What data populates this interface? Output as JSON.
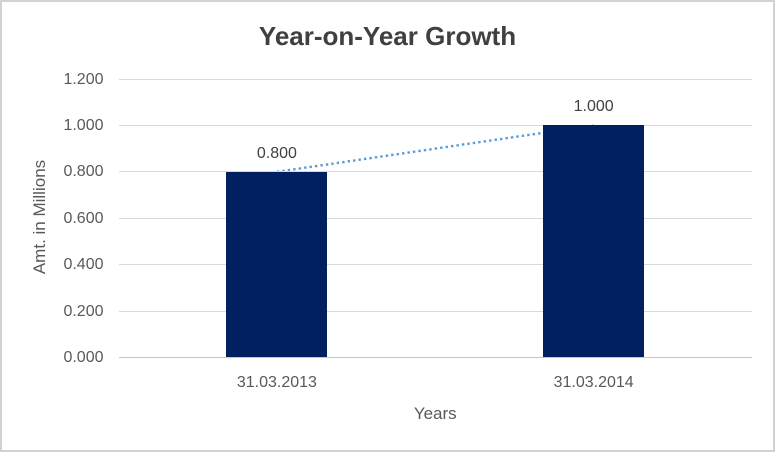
{
  "colors": {
    "bar": "#002060",
    "trendline": "#5B9BD5",
    "gridline": "#D9D9D9",
    "axis_line": "#C6C6C6",
    "axis_text": "#595959",
    "title_text": "#404040",
    "border": "#D2D2D2"
  },
  "chart_data": {
    "type": "bar",
    "title": "Year-on-Year Growth",
    "categories": [
      "31.03.2013",
      "31.03.2014"
    ],
    "values": [
      0.8,
      1.0
    ],
    "data_labels": [
      "0.800",
      "1.000"
    ],
    "xlabel": "Years",
    "ylabel": "Amt. in Millions",
    "ylim": [
      0,
      1.2
    ],
    "ytick_step": 0.2,
    "ytick_labels": [
      "0.000",
      "0.200",
      "0.400",
      "0.600",
      "0.800",
      "1.000",
      "1.200"
    ],
    "grid": true,
    "legend": "none",
    "trendline": {
      "style": "dotted",
      "from_category_index": 0,
      "to_category_index": 1
    }
  }
}
